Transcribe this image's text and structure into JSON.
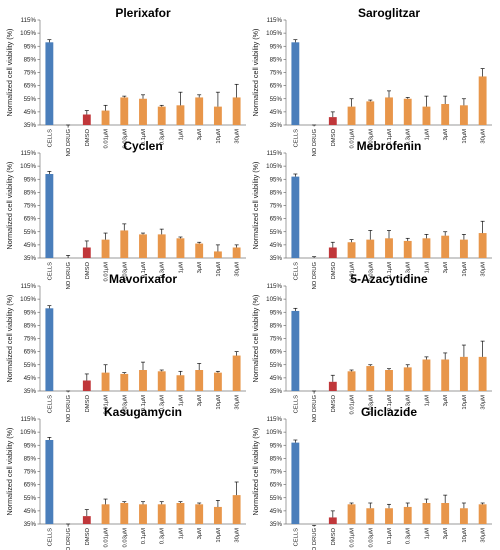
{
  "figure": {
    "bar_colors": {
      "cells": "#4a7ebb",
      "no_drug": "#4a7ebb",
      "dmso": "#c0373a",
      "drug": "#e8964a"
    },
    "ylabel": "Normalized cell viability (%)"
  },
  "chart_data": [
    {
      "type": "bar",
      "title": "Plerixafor",
      "ylabel": "Normalized cell viability (%)",
      "yticks": [
        "35%",
        "45%",
        "55%",
        "65%",
        "75%",
        "85%",
        "95%",
        "105%",
        "115%"
      ],
      "ylim": [
        35,
        115
      ],
      "categories": [
        "CELLS",
        "NO DRUG",
        "DMSO",
        "0.01μM",
        "0.03μM",
        "0.1μM",
        "0.3μM",
        "1μM",
        "3μM",
        "10μM",
        "30μM"
      ],
      "values": [
        98,
        33,
        43,
        46,
        56,
        55,
        49,
        50,
        56,
        49,
        56
      ],
      "errors": [
        2,
        2,
        3,
        4,
        1,
        3,
        1,
        10,
        2,
        11,
        10
      ]
    },
    {
      "type": "bar",
      "title": "Saroglitzar",
      "ylabel": "Normalized cell viability (%)",
      "yticks": [
        "35%",
        "45%",
        "55%",
        "65%",
        "75%",
        "85%",
        "95%",
        "105%",
        "115%"
      ],
      "ylim": [
        35,
        115
      ],
      "categories": [
        "CELLS",
        "NO DRUG",
        "DMSO",
        "0.01μM",
        "0.03μM",
        "0.1μM",
        "0.3μM",
        "1μM",
        "3μM",
        "10μM",
        "30μM"
      ],
      "values": [
        98,
        34,
        41,
        49,
        53,
        56,
        55,
        49,
        51,
        50,
        72
      ],
      "errors": [
        2,
        1,
        4,
        6,
        1,
        5,
        1,
        8,
        6,
        5,
        6
      ]
    },
    {
      "type": "bar",
      "title": "Cyclen",
      "ylabel": "Normalized cell viability (%)",
      "yticks": [
        "35%",
        "45%",
        "55%",
        "65%",
        "75%",
        "85%",
        "95%",
        "105%",
        "115%"
      ],
      "ylim": [
        35,
        115
      ],
      "categories": [
        "CELLS",
        "NO DRUG",
        "DMSO",
        "0.01μM",
        "0.03μM",
        "0.1μM",
        "0.3μM",
        "1μM",
        "3μM",
        "10μM",
        "30μM"
      ],
      "values": [
        99,
        35,
        43,
        49,
        56,
        53,
        53,
        50,
        46,
        40,
        43
      ],
      "errors": [
        2,
        2,
        5,
        5,
        5,
        1,
        4,
        1,
        1,
        5,
        2
      ]
    },
    {
      "type": "bar",
      "title": "Mebrofenin",
      "ylabel": "Normalized cell viability (%)",
      "yticks": [
        "35%",
        "45%",
        "55%",
        "65%",
        "75%",
        "85%",
        "95%",
        "105%",
        "115%"
      ],
      "ylim": [
        35,
        115
      ],
      "categories": [
        "CELLS",
        "NO DRUG",
        "DMSO",
        "0.01μM",
        "0.03μM",
        "0.1μM",
        "0.3μM",
        "1μM",
        "3μM",
        "10μM",
        "30μM"
      ],
      "values": [
        97,
        35,
        43,
        47,
        49,
        50,
        48,
        50,
        52,
        49,
        54
      ],
      "errors": [
        2,
        1,
        4,
        2,
        7,
        6,
        2,
        3,
        3,
        4,
        9
      ]
    },
    {
      "type": "bar",
      "title": "Mavorixafor",
      "ylabel": "Normalized cell viability (%)",
      "yticks": [
        "35%",
        "45%",
        "55%",
        "65%",
        "75%",
        "85%",
        "95%",
        "105%",
        "115%"
      ],
      "ylim": [
        35,
        115
      ],
      "categories": [
        "CELLS",
        "NO DRUG",
        "DMSO",
        "0.01μM",
        "0.03μM",
        "0.1μM",
        "0.3μM",
        "1μM",
        "3μM",
        "10μM",
        "30μM"
      ],
      "values": [
        98,
        34,
        43,
        49,
        48,
        51,
        50,
        47,
        51,
        49,
        62
      ],
      "errors": [
        2,
        1,
        5,
        6,
        1,
        6,
        1,
        3,
        5,
        1,
        3
      ]
    },
    {
      "type": "bar",
      "title": "5-Azacytidine",
      "ylabel": "Normalized cell viability (%)",
      "yticks": [
        "35%",
        "45%",
        "55%",
        "65%",
        "75%",
        "85%",
        "95%",
        "105%",
        "115%"
      ],
      "ylim": [
        35,
        115
      ],
      "categories": [
        "CELLS",
        "NO DRUG",
        "DMSO",
        "0.01μM",
        "0.03μM",
        "0.1μM",
        "0.3μM",
        "1μM",
        "3μM",
        "10μM",
        "30μM"
      ],
      "values": [
        96,
        33,
        42,
        50,
        54,
        51,
        53,
        59,
        59,
        61,
        61
      ],
      "errors": [
        2,
        2,
        5,
        1,
        1,
        1,
        2,
        2,
        5,
        9,
        12
      ]
    },
    {
      "type": "bar",
      "title": "Kasugamycin",
      "ylabel": "Normalized cell viability (%)",
      "yticks": [
        "35%",
        "45%",
        "55%",
        "65%",
        "75%",
        "85%",
        "95%",
        "105%",
        "115%"
      ],
      "ylim": [
        35,
        115
      ],
      "categories": [
        "CELLS",
        "NO DRUG",
        "DMSO",
        "0.01μM",
        "0.03μM",
        "0.1μM",
        "0.3μM",
        "1μM",
        "3μM",
        "10μM",
        "30μM"
      ],
      "values": [
        99,
        33,
        41,
        50,
        51,
        50,
        50,
        51,
        50,
        48,
        57
      ],
      "errors": [
        2,
        2,
        5,
        4,
        1,
        2,
        2,
        1,
        1,
        5,
        10
      ]
    },
    {
      "type": "bar",
      "title": "Gliclazide",
      "ylabel": "Normalized cell viability (%)",
      "yticks": [
        "35%",
        "45%",
        "55%",
        "65%",
        "75%",
        "85%",
        "95%",
        "105%",
        "115%"
      ],
      "ylim": [
        35,
        115
      ],
      "categories": [
        "CELLS",
        "NO DRUG",
        "DMSO",
        "0.01μM",
        "0.03μM",
        "0.1μM",
        "0.3μM",
        "1μM",
        "3μM",
        "10μM",
        "30μM"
      ],
      "values": [
        97,
        33,
        40,
        50,
        47,
        47,
        48,
        51,
        51,
        47,
        50
      ],
      "errors": [
        2,
        1,
        5,
        1,
        4,
        3,
        3,
        3,
        6,
        4,
        1
      ]
    }
  ]
}
